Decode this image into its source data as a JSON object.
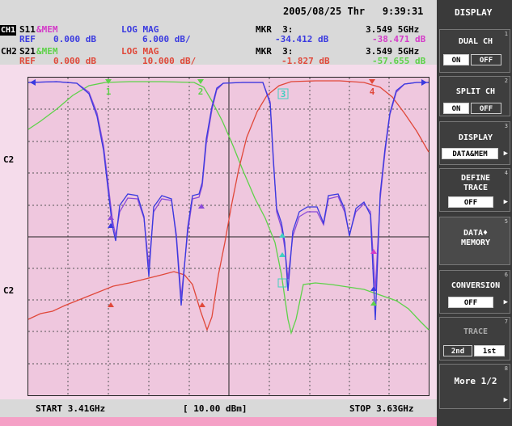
{
  "status": {
    "datetime": "2005/08/25 Thr   9:39:31",
    "panel_title": "DISPLAY"
  },
  "header": {
    "ch1": {
      "label": "CH1",
      "param": "S11",
      "suffix": "&MEM",
      "format": "LOG MAG",
      "ref": "REF",
      "ref_value": "0.000 dB",
      "scale": "6.000 dB/",
      "mkr": "MKR  3:",
      "mkr_freq": "3.549 5GHz",
      "mkr_val1": "-34.412 dB",
      "mkr_val2": "-38.471 dB"
    },
    "ch2": {
      "label": "CH2",
      "param": "S21",
      "suffix": "&MEM",
      "format": "LOG MAG",
      "ref": "REF",
      "ref_value": "0.000 dB",
      "scale": "10.000 dB/",
      "mkr": "MKR  3:",
      "mkr_freq": "3.549 5GHz",
      "mkr_val1": "-1.827 dB",
      "mkr_val2": "-57.655 dB"
    }
  },
  "axis": {
    "start": "START 3.41GHz",
    "power": "[ 10.00 dBm]",
    "stop": "STOP 3.63GHz",
    "c2_upper": "C2",
    "c2_lower": "C2"
  },
  "markers": {
    "top": [
      "1",
      "2",
      "3",
      "4"
    ]
  },
  "softkeys": [
    {
      "label": "DUAL CH",
      "num": "1",
      "on": "ON",
      "off": "OFF",
      "selected": "ON"
    },
    {
      "label": "SPLIT CH",
      "num": "2",
      "on": "ON",
      "off": "OFF",
      "selected": "ON"
    },
    {
      "label": "DISPLAY",
      "num": "3",
      "value": "DATA&MEM"
    },
    {
      "label1": "DEFINE",
      "label2": "TRACE",
      "num": "4",
      "value": "OFF"
    },
    {
      "label1": "DATA♦",
      "label2": "MEMORY",
      "num": "5"
    },
    {
      "label": "CONVERSION",
      "num": "6",
      "value": "OFF"
    },
    {
      "label": "TRACE",
      "num": "7",
      "opt1": "2nd",
      "opt2": "1st"
    },
    {
      "label": "More 1/2",
      "num": "8"
    }
  ],
  "colors": {
    "purple": "#7a3cc8",
    "blue": "#3a3ae0",
    "red": "#e0483a",
    "green": "#5ed24a",
    "magenta": "#d43cc8",
    "cyan": "#40d0c0"
  }
}
